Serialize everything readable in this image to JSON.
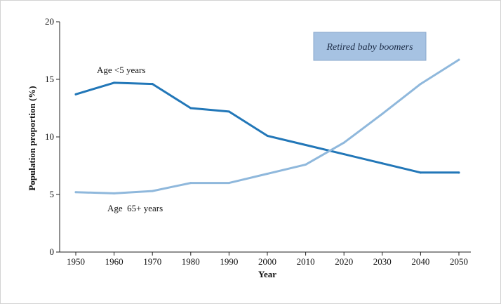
{
  "chart_data": {
    "type": "line",
    "title": "",
    "xlabel": "Year",
    "ylabel": "Population proportion (%)",
    "x": [
      1950,
      1960,
      1970,
      1980,
      1990,
      2000,
      2010,
      2020,
      2030,
      2040,
      2050
    ],
    "x_tick_labels": [
      "1950",
      "1960",
      "1970",
      "1980",
      "1990",
      "2000",
      "2010",
      "2020",
      "2030",
      "2040",
      "2050"
    ],
    "y_ticks": [
      0,
      5,
      10,
      15,
      20
    ],
    "y_tick_labels": [
      "0",
      "5",
      "10",
      "15",
      "20"
    ],
    "ylim": [
      0,
      20
    ],
    "grid": false,
    "legend": "none",
    "series": [
      {
        "name": "Age <5 years",
        "color": "#2277b8",
        "values": [
          13.7,
          14.7,
          14.6,
          12.5,
          12.2,
          10.1,
          9.3,
          8.5,
          7.7,
          6.9,
          6.9
        ]
      },
      {
        "name": "Age  65+ years",
        "color": "#8fb8dc",
        "values": [
          5.2,
          5.1,
          5.3,
          6.0,
          6.0,
          6.8,
          7.6,
          9.5,
          12.0,
          14.6,
          16.7
        ]
      }
    ],
    "annotations": [
      {
        "text": "Retired baby boomers",
        "fill": "#a6c2e2",
        "border": "#8aa8cc"
      }
    ]
  }
}
